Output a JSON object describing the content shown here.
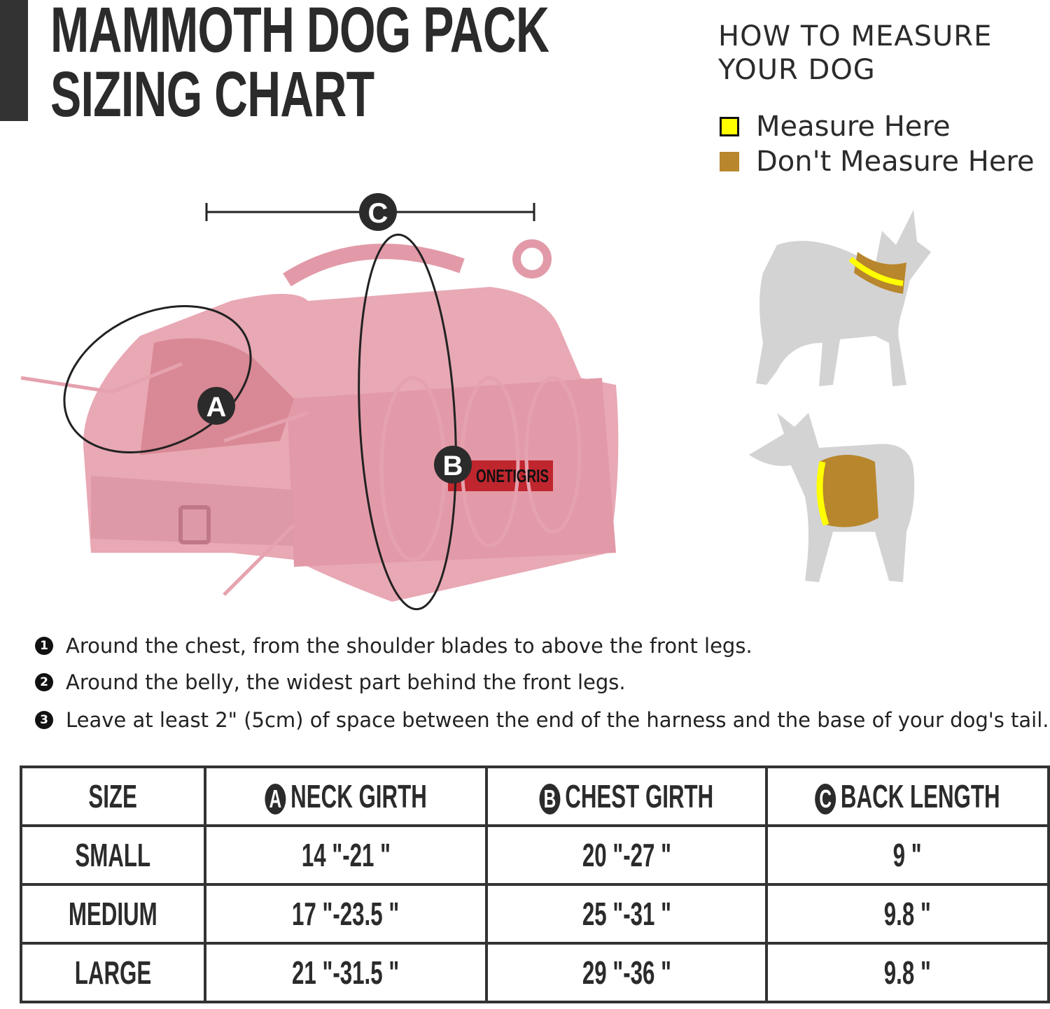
{
  "title": {
    "line1": "MAMMOTH DOG PACK",
    "line2": "SIZING CHART"
  },
  "how_to": {
    "line1": "HOW TO MEASURE",
    "line2": "YOUR DOG"
  },
  "legend": [
    {
      "label": "Measure Here",
      "color": "#FFFF00"
    },
    {
      "label": "Don't Measure Here",
      "color": "#B8862C"
    }
  ],
  "diagram": {
    "markers": {
      "a": "A",
      "b": "B",
      "c": "C"
    },
    "brand_label": "ONETIGRIS",
    "pack_color": "#E8A8B4"
  },
  "notes": [
    {
      "num": "1",
      "text": "Around the chest, from the shoulder blades to above the front legs."
    },
    {
      "num": "2",
      "text": "Around the belly, the widest part behind the front legs."
    },
    {
      "num": "3",
      "text": "Leave at least 2\" (5cm) of space between the end of the harness and  the base of your dog's tail."
    }
  ],
  "table": {
    "headers": [
      {
        "badge": "",
        "label": "SIZE"
      },
      {
        "badge": "A",
        "label": "NECK GIRTH"
      },
      {
        "badge": "B",
        "label": "CHEST GIRTH"
      },
      {
        "badge": "C",
        "label": "BACK LENGTH"
      }
    ],
    "rows": [
      [
        "SMALL",
        "14 \"-21 \"",
        "20 \"-27 \"",
        "9 \""
      ],
      [
        "MEDIUM",
        "17 \"-23.5 \"",
        "25 \"-31 \"",
        "9.8 \""
      ],
      [
        "LARGE",
        "21 \"-31.5 \"",
        "29 \"-36 \"",
        "9.8 \""
      ]
    ]
  }
}
